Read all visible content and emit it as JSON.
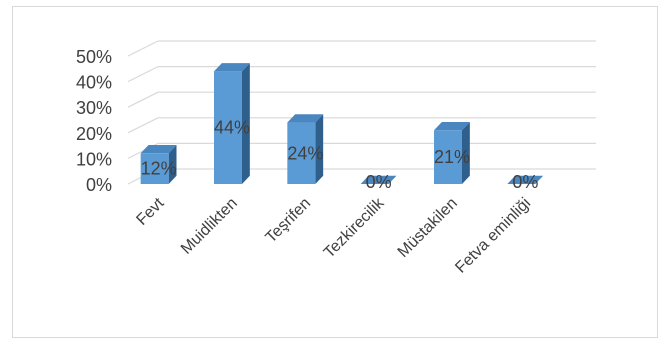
{
  "chart_data": {
    "type": "bar",
    "categories": [
      "Fevt",
      "Muidlikten",
      "Teşrifen",
      "Tezkirecilik",
      "Müstakilen",
      "Fetva eminliği"
    ],
    "values": [
      12,
      44,
      24,
      0,
      21,
      0
    ],
    "data_labels": [
      "12%",
      "44%",
      "24%",
      "0%",
      "21%",
      "0%"
    ],
    "y_ticks": [
      "0%",
      "10%",
      "20%",
      "30%",
      "40%",
      "50%"
    ],
    "ylim": [
      0,
      50
    ],
    "grid": true,
    "legend": "none",
    "colors": {
      "bar_front": "#5b9bd5",
      "bar_side": "#2f5f8d",
      "bar_top": "#4a86c0",
      "grid": "#d9d9d9",
      "text": "#404040"
    }
  }
}
